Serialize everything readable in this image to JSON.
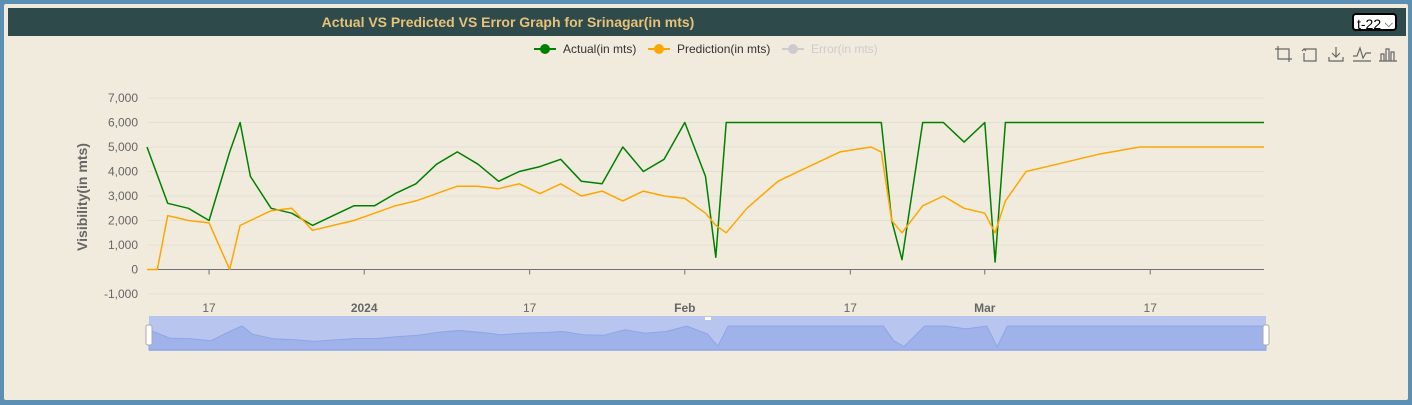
{
  "header": {
    "title": "Actual VS Predicted VS Error Graph for Srinagar(in mts)",
    "selected_option": "t-22"
  },
  "toolbox": {
    "icons": [
      "zoom-area-icon",
      "zoom-reset-icon",
      "download-icon",
      "line-chart-icon",
      "bar-chart-icon"
    ]
  },
  "colors": {
    "actual": "#008000",
    "prediction": "#ffa500",
    "error_disabled": "#cccccc",
    "axis_text": "#666666",
    "title": "#e6c27a",
    "titlebar": "#2f4a4a",
    "background": "#f0ebdd"
  },
  "chart_data": {
    "type": "line",
    "title": "Actual VS Predicted VS Error Graph for Srinagar(in mts)",
    "ylabel": "Visibility(in mts)",
    "xlabel": "",
    "ylim": [
      -1000,
      7000
    ],
    "yticks": [
      "7,000",
      "6,000",
      "5,000",
      "4,000",
      "3,000",
      "2,000",
      "1,000",
      "0",
      "-1,000"
    ],
    "xticks": [
      {
        "date": "2023-12-17",
        "label": "17",
        "bold": false
      },
      {
        "date": "2024-01-01",
        "label": "2024",
        "bold": true
      },
      {
        "date": "2024-01-17",
        "label": "17",
        "bold": false
      },
      {
        "date": "2024-02-01",
        "label": "Feb",
        "bold": true
      },
      {
        "date": "2024-02-17",
        "label": "17",
        "bold": false
      },
      {
        "date": "2024-03-01",
        "label": "Mar",
        "bold": true
      },
      {
        "date": "2024-03-17",
        "label": "17",
        "bold": false
      }
    ],
    "xrange": [
      "2023-12-11",
      "2024-03-28"
    ],
    "legend": {
      "placement": "top-center",
      "items": [
        {
          "name": "Actual(in mts)",
          "color": "#008000",
          "enabled": true
        },
        {
          "name": "Prediction(in mts)",
          "color": "#ffa500",
          "enabled": true
        },
        {
          "name": "Error(in mts)",
          "color": "#cccccc",
          "enabled": false
        }
      ]
    },
    "grid": true,
    "series": [
      {
        "name": "Actual(in mts)",
        "x": [
          "2023-12-11",
          "2023-12-13",
          "2023-12-15",
          "2023-12-17",
          "2023-12-19",
          "2023-12-20",
          "2023-12-21",
          "2023-12-23",
          "2023-12-25",
          "2023-12-27",
          "2023-12-29",
          "2023-12-31",
          "2024-01-02",
          "2024-01-04",
          "2024-01-06",
          "2024-01-08",
          "2024-01-10",
          "2024-01-12",
          "2024-01-14",
          "2024-01-16",
          "2024-01-18",
          "2024-01-20",
          "2024-01-22",
          "2024-01-24",
          "2024-01-26",
          "2024-01-28",
          "2024-01-30",
          "2024-02-01",
          "2024-02-03",
          "2024-02-04",
          "2024-02-05",
          "2024-02-07",
          "2024-02-10",
          "2024-02-14",
          "2024-02-18",
          "2024-02-20",
          "2024-02-21",
          "2024-02-22",
          "2024-02-24",
          "2024-02-26",
          "2024-02-28",
          "2024-03-01",
          "2024-03-02",
          "2024-03-03",
          "2024-03-06",
          "2024-03-10",
          "2024-03-14",
          "2024-03-18",
          "2024-03-22",
          "2024-03-26",
          "2024-03-28"
        ],
        "values": [
          5000,
          2700,
          2500,
          2000,
          4800,
          6000,
          3800,
          2500,
          2300,
          1800,
          2200,
          2600,
          2600,
          3100,
          3500,
          4300,
          4800,
          4300,
          3600,
          4000,
          4200,
          4500,
          3600,
          3500,
          5000,
          4000,
          4500,
          6000,
          3800,
          500,
          6000,
          6000,
          6000,
          6000,
          6000,
          6000,
          2000,
          400,
          6000,
          6000,
          5200,
          6000,
          300,
          6000,
          6000,
          6000,
          6000,
          6000,
          6000,
          6000,
          6000
        ]
      },
      {
        "name": "Prediction(in mts)",
        "x": [
          "2023-12-11",
          "2023-12-12",
          "2023-12-13",
          "2023-12-15",
          "2023-12-17",
          "2023-12-19",
          "2023-12-20",
          "2023-12-21",
          "2023-12-23",
          "2023-12-25",
          "2023-12-27",
          "2023-12-29",
          "2023-12-31",
          "2024-01-02",
          "2024-01-04",
          "2024-01-06",
          "2024-01-08",
          "2024-01-10",
          "2024-01-12",
          "2024-01-14",
          "2024-01-16",
          "2024-01-18",
          "2024-01-20",
          "2024-01-22",
          "2024-01-24",
          "2024-01-26",
          "2024-01-28",
          "2024-01-30",
          "2024-02-01",
          "2024-02-03",
          "2024-02-04",
          "2024-02-05",
          "2024-02-07",
          "2024-02-10",
          "2024-02-13",
          "2024-02-16",
          "2024-02-19",
          "2024-02-20",
          "2024-02-21",
          "2024-02-22",
          "2024-02-24",
          "2024-02-26",
          "2024-02-28",
          "2024-03-01",
          "2024-03-02",
          "2024-03-03",
          "2024-03-05",
          "2024-03-08",
          "2024-03-12",
          "2024-03-16",
          "2024-03-20",
          "2024-03-24",
          "2024-03-28"
        ],
        "values": [
          0,
          0,
          2200,
          2000,
          1900,
          0,
          1800,
          2000,
          2400,
          2500,
          1600,
          1800,
          2000,
          2300,
          2600,
          2800,
          3100,
          3400,
          3400,
          3300,
          3500,
          3100,
          3500,
          3000,
          3200,
          2800,
          3200,
          3000,
          2900,
          2300,
          1800,
          1500,
          2500,
          3600,
          4200,
          4800,
          5000,
          4800,
          2000,
          1500,
          2600,
          3000,
          2500,
          2300,
          1500,
          2800,
          4000,
          4300,
          4700,
          5000,
          5000,
          5000,
          5000
        ]
      },
      {
        "name": "Error(in mts)",
        "x": [],
        "values": []
      }
    ]
  }
}
